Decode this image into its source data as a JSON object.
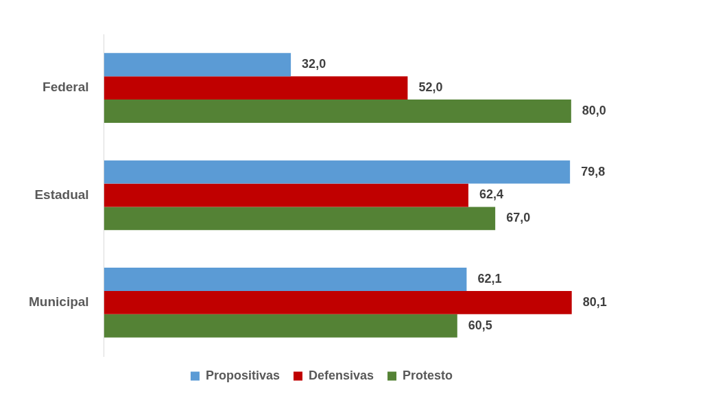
{
  "chart_data": {
    "type": "bar",
    "orientation": "horizontal",
    "categories": [
      "Federal",
      "Estadual",
      "Municipal"
    ],
    "series": [
      {
        "name": "Propositivas",
        "color": "#5b9bd5",
        "values": [
          32.0,
          79.8,
          62.1
        ],
        "value_labels": [
          "32,0",
          "79,8",
          "62,1"
        ]
      },
      {
        "name": "Defensivas",
        "color": "#c00000",
        "values": [
          52.0,
          62.4,
          80.1
        ],
        "value_labels": [
          "52,0",
          "62,4",
          "80,1"
        ]
      },
      {
        "name": "Protesto",
        "color": "#548235",
        "values": [
          80.0,
          67.0,
          60.5
        ],
        "value_labels": [
          "80,0",
          "67,0",
          "60,5"
        ]
      }
    ],
    "legend": "bottom"
  }
}
